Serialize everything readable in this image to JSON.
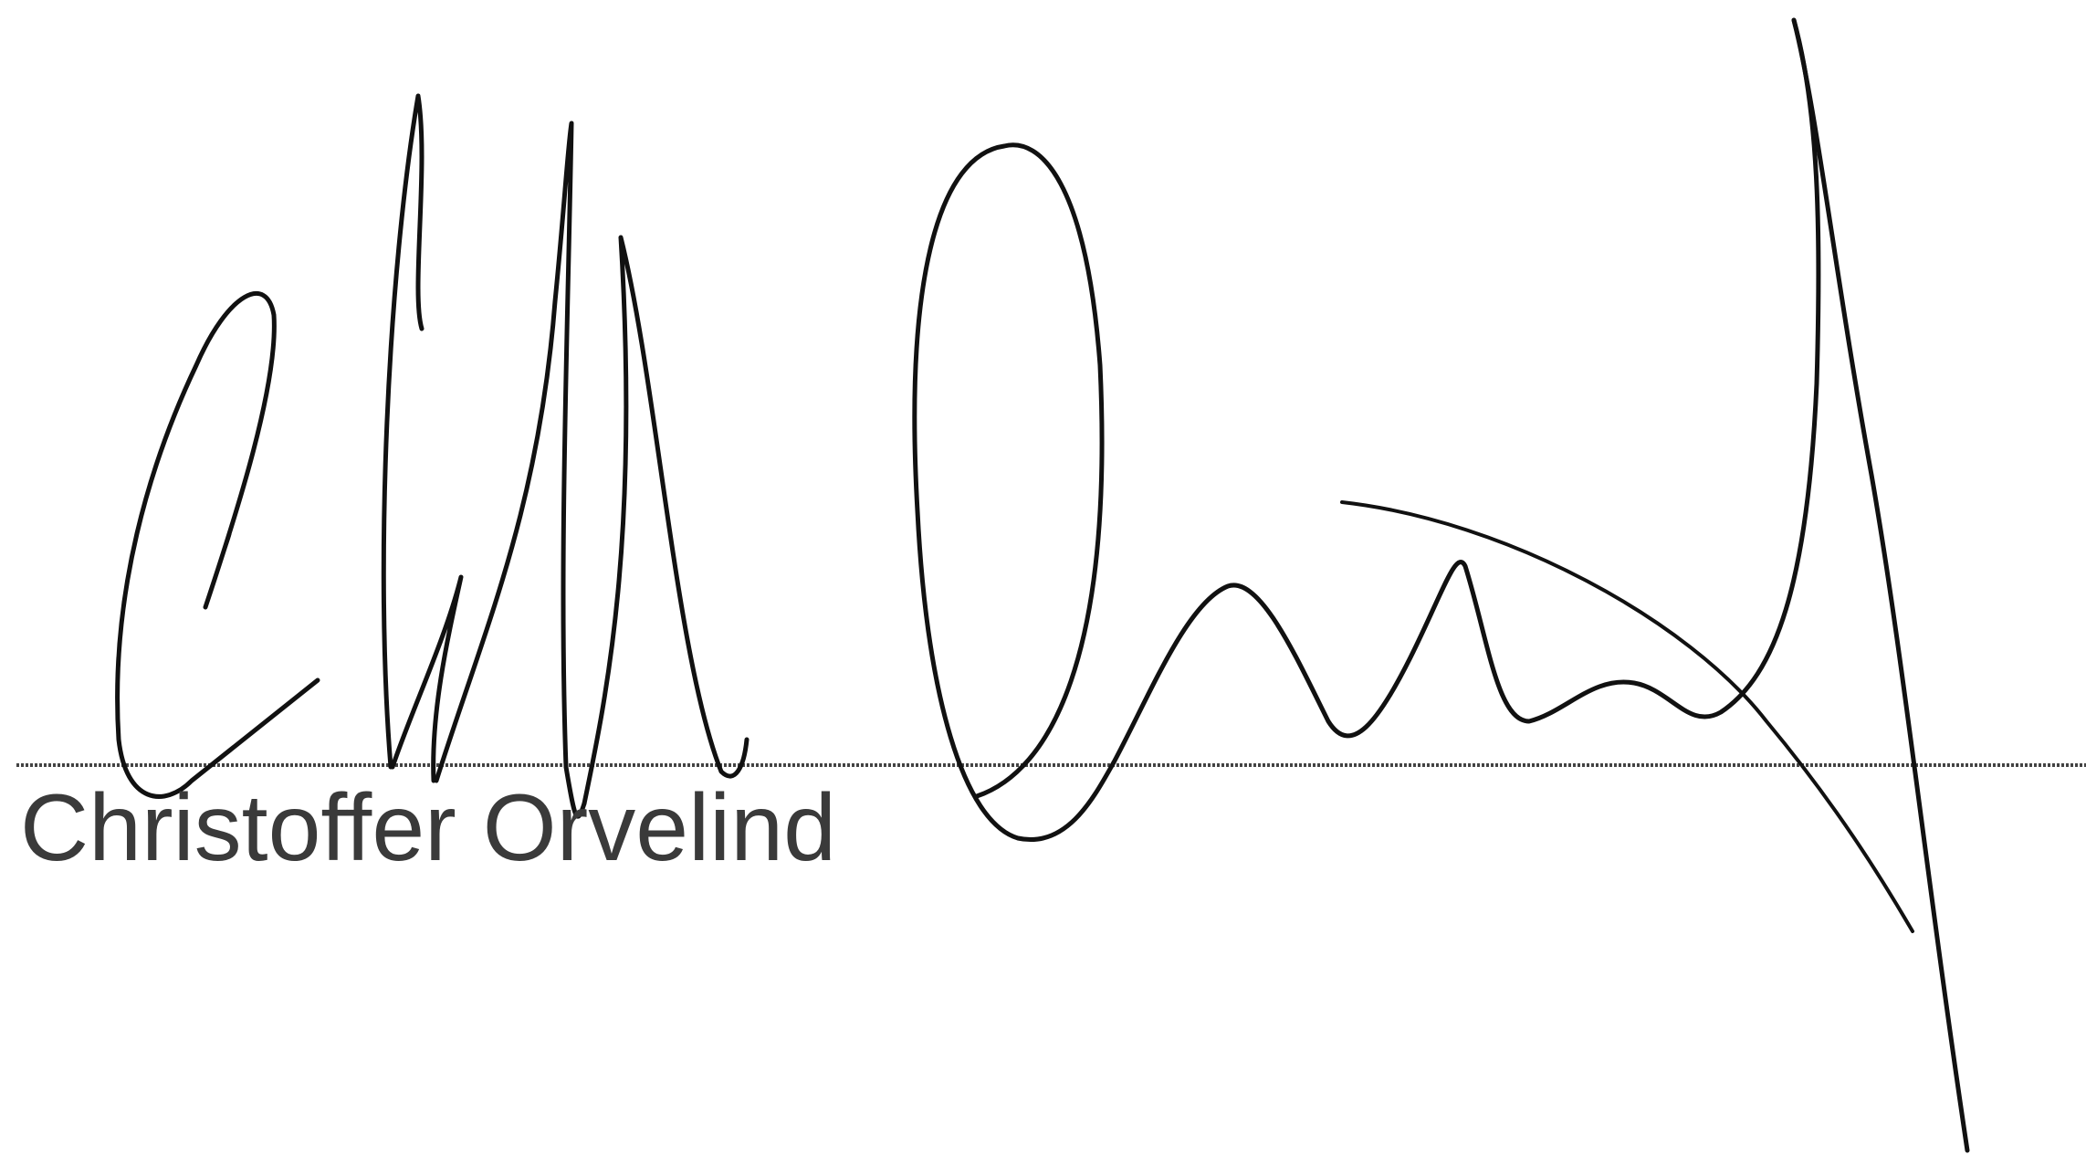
{
  "signature": {
    "signer_name": "Christoffer Orvelind",
    "ink_color": "#111111",
    "line_color": "#444444"
  }
}
